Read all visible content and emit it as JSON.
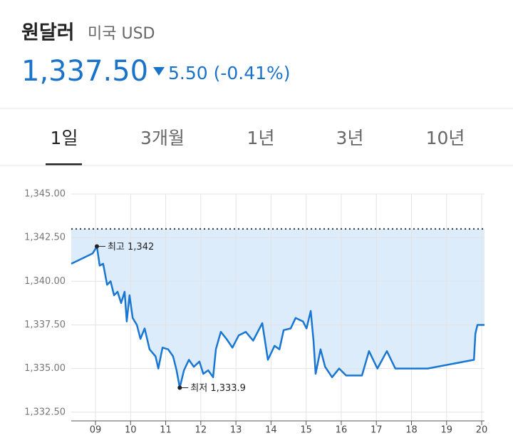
{
  "header": {
    "title": "원달러",
    "subtitle": "미국 USD",
    "price": "1,337.50",
    "change": "5.50 (-0.41%)"
  },
  "tabs": [
    "1일",
    "3개월",
    "1년",
    "3년",
    "10년"
  ],
  "chart_data": {
    "type": "line",
    "color": "#1976d2",
    "fill": "#dcecfb",
    "grid": true,
    "x": [
      8.31,
      8.92,
      9.04,
      9.12,
      9.22,
      9.33,
      9.43,
      9.53,
      9.63,
      9.73,
      9.83,
      9.89,
      9.97,
      10.06,
      10.18,
      10.28,
      10.4,
      10.54,
      10.71,
      10.79,
      10.91,
      11.07,
      11.21,
      11.31,
      11.4,
      11.52,
      11.66,
      11.8,
      11.96,
      12.07,
      12.21,
      12.35,
      12.43,
      12.57,
      12.73,
      12.9,
      13.08,
      13.28,
      13.49,
      13.75,
      13.91,
      14.1,
      14.24,
      14.36,
      14.56,
      14.7,
      14.91,
      15.01,
      15.13,
      15.21,
      15.27,
      15.41,
      15.54,
      15.74,
      15.94,
      16.14,
      16.59,
      16.79,
      17.03,
      17.3,
      17.54,
      18.46,
      19.78,
      19.82,
      19.88,
      20.08
    ],
    "values": [
      1341.0,
      1341.6,
      1342.0,
      1340.9,
      1341.0,
      1339.8,
      1340.0,
      1339.2,
      1339.4,
      1338.75,
      1339.4,
      1337.7,
      1339.2,
      1337.9,
      1337.5,
      1336.7,
      1337.3,
      1336.1,
      1335.7,
      1335.0,
      1336.2,
      1336.1,
      1335.7,
      1334.9,
      1333.9,
      1334.9,
      1335.5,
      1335.1,
      1335.4,
      1334.7,
      1334.9,
      1334.5,
      1336.1,
      1337.1,
      1336.7,
      1336.2,
      1336.9,
      1337.1,
      1336.6,
      1337.6,
      1335.5,
      1336.3,
      1336.1,
      1337.2,
      1337.3,
      1337.9,
      1337.7,
      1337.3,
      1338.3,
      1336.6,
      1334.7,
      1336.1,
      1335.1,
      1334.5,
      1335.0,
      1334.6,
      1334.6,
      1336.0,
      1335.0,
      1336.0,
      1335.0,
      1335.0,
      1335.5,
      1337.0,
      1337.5,
      1337.5
    ],
    "reference_line": 1343,
    "xlim": [
      8.31,
      20.08
    ],
    "ylim": [
      1332,
      1345
    ],
    "xticks": [
      {
        "value": 9,
        "label": "09"
      },
      {
        "value": 10,
        "label": "10"
      },
      {
        "value": 11,
        "label": "11"
      },
      {
        "value": 12,
        "label": "12"
      },
      {
        "value": 13,
        "label": "13"
      },
      {
        "value": 14,
        "label": "14"
      },
      {
        "value": 15,
        "label": "15"
      },
      {
        "value": 16,
        "label": "16"
      },
      {
        "value": 17,
        "label": "17"
      },
      {
        "value": 18,
        "label": "18"
      },
      {
        "value": 19,
        "label": "19"
      },
      {
        "value": 20,
        "label": "20"
      }
    ],
    "yticks": [
      {
        "value": 1332.5,
        "label": "1,332.50"
      },
      {
        "value": 1335,
        "label": "1,335.00"
      },
      {
        "value": 1337.5,
        "label": "1,337.50"
      },
      {
        "value": 1340,
        "label": "1,340.00"
      },
      {
        "value": 1342.5,
        "label": "1,342.50"
      },
      {
        "value": 1345,
        "label": "1,345.00"
      }
    ],
    "annotations": [
      {
        "text": "최고 1,342",
        "x": 9.04,
        "y": 1342
      },
      {
        "text": "최저 1,333.9",
        "x": 11.4,
        "y": 1333.9
      }
    ]
  }
}
